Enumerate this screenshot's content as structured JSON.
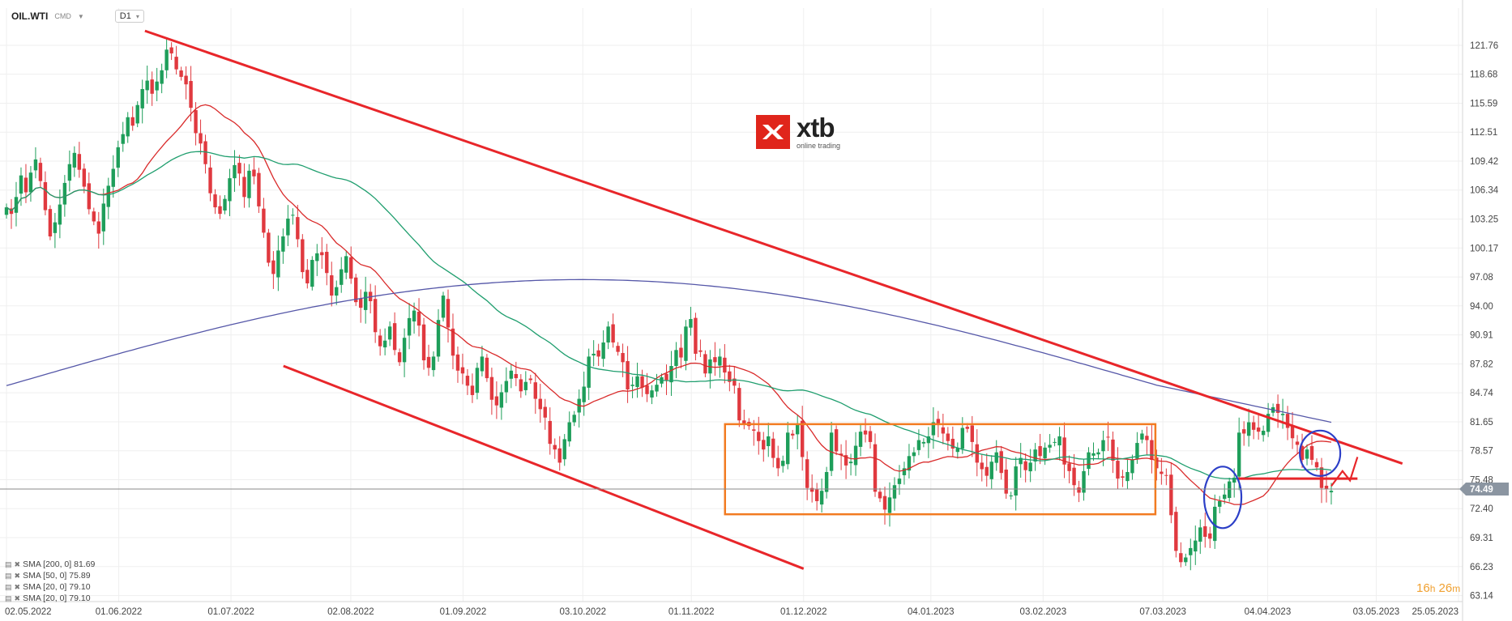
{
  "header": {
    "symbol": "OIL.WTI",
    "symbol_type": "CMD",
    "timeframe": "D1"
  },
  "logo": {
    "name": "xtb",
    "tagline": "online trading"
  },
  "current_price": "74.49",
  "timer": {
    "hours": "16",
    "h_unit": "h",
    "minutes": "26",
    "m_unit": "m"
  },
  "indicators": [
    {
      "label": "SMA [200, 0] 81.69",
      "color": "#5557a8"
    },
    {
      "label": "SMA [50, 0] 75.89",
      "color": "#1f9e6e"
    },
    {
      "label": "SMA [20, 0] 79.10",
      "color": "#d92a2a"
    },
    {
      "label": "SMA [20, 0] 79.10",
      "color": "#d92a2a"
    }
  ],
  "colors": {
    "bull": "#1e9e5a",
    "bear": "#e0393f",
    "trend_lines": "#e8262a",
    "box": "#f27b21",
    "circles": "#2c3fc7",
    "price_line": "#8a8a8a",
    "price_tag": "#8b95a1"
  },
  "chart_data": {
    "type": "candlestick",
    "y_ticks": [
      "121.76",
      "118.68",
      "115.59",
      "112.51",
      "109.42",
      "106.34",
      "103.25",
      "100.17",
      "97.08",
      "94.00",
      "90.91",
      "87.82",
      "84.74",
      "81.65",
      "78.57",
      "75.48",
      "72.40",
      "69.31",
      "66.23",
      "63.14"
    ],
    "x_ticks": [
      "02.05.2022",
      "01.06.2022",
      "01.07.2022",
      "02.08.2022",
      "01.09.2022",
      "03.10.2022",
      "01.11.2022",
      "01.12.2022",
      "04.01.2023",
      "03.02.2023",
      "07.03.2023",
      "04.04.2023",
      "03.05.2023",
      "25.05.2023"
    ],
    "ylim": [
      62.5,
      124.0
    ],
    "x_range": [
      "2022-05-02",
      "2023-05-25"
    ],
    "grid": true,
    "price_close": [
      104.5,
      103.8,
      105.6,
      107.9,
      106.1,
      108.2,
      109.6,
      107.3,
      104.2,
      101.4,
      102.9,
      104.8,
      107.1,
      109.1,
      110.3,
      108.5,
      106.7,
      104.3,
      103.0,
      101.7,
      104.9,
      106.8,
      108.6,
      110.9,
      112.3,
      114.1,
      113.2,
      115.4,
      117.1,
      118.0,
      116.6,
      117.9,
      119.1,
      121.3,
      120.9,
      119.2,
      118.4,
      117.6,
      115.1,
      112.4,
      111.3,
      109.1,
      106.0,
      104.5,
      103.8,
      105.4,
      107.6,
      109.0,
      108.1,
      105.6,
      108.4,
      107.8,
      104.6,
      101.8,
      98.6,
      97.4,
      99.9,
      101.4,
      103.3,
      103.7,
      101.1,
      97.6,
      96.4,
      98.9,
      99.6,
      99.4,
      97.5,
      95.1,
      96.0,
      97.9,
      99.3,
      96.9,
      94.4,
      93.8,
      95.5,
      94.5,
      91.2,
      89.7,
      90.3,
      91.8,
      89.3,
      88.0,
      90.6,
      92.7,
      93.5,
      91.9,
      88.2,
      87.4,
      88.6,
      92.5,
      95.1,
      91.7,
      88.7,
      87.1,
      86.8,
      85.5,
      84.5,
      87.4,
      88.6,
      86.3,
      84.0,
      83.4,
      84.8,
      86.0,
      87.1,
      86.3,
      84.9,
      85.9,
      86.1,
      84.1,
      83.0,
      82.1,
      79.3,
      78.7,
      77.3,
      79.8,
      81.6,
      82.4,
      84.1,
      85.4,
      88.6,
      88.9,
      88.6,
      90.1,
      91.8,
      90.1,
      89.1,
      88.0,
      85.1,
      85.6,
      86.5,
      85.3,
      84.6,
      85.0,
      85.6,
      86.4,
      86.1,
      87.6,
      89.3,
      88.5,
      91.8,
      92.6,
      88.9,
      89.1,
      86.8,
      88.3,
      88.0,
      88.6,
      86.9,
      85.9,
      85.5,
      81.8,
      81.4,
      81.2,
      80.7,
      79.6,
      78.7,
      80.1,
      77.8,
      76.7,
      77.5,
      80.5,
      80.2,
      81.4,
      77.9,
      74.6,
      74.2,
      73.2,
      74.3,
      76.3,
      80.5,
      78.5,
      78.1,
      77.0,
      77.4,
      79.1,
      80.6,
      80.3,
      79.5,
      74.2,
      73.5,
      72.3,
      73.6,
      74.9,
      75.6,
      76.7,
      78.0,
      78.4,
      79.7,
      79.5,
      80.1,
      81.6,
      81.3,
      80.4,
      79.6,
      78.8,
      78.9,
      81.0,
      80.9,
      79.5,
      77.3,
      76.6,
      75.9,
      77.4,
      78.4,
      76.2,
      74.0,
      73.8,
      76.9,
      77.8,
      76.5,
      77.3,
      78.7,
      78.0,
      78.9,
      79.2,
      79.5,
      80.1,
      77.1,
      76.4,
      74.9,
      74.1,
      76.4,
      78.4,
      78.3,
      78.4,
      79.7,
      80.0,
      77.5,
      75.6,
      75.7,
      76.3,
      77.6,
      79.4,
      80.4,
      79.7,
      77.6,
      76.7,
      76.1,
      75.9,
      71.7,
      67.9,
      66.7,
      67.2,
      68.2,
      69.0,
      70.4,
      69.4,
      69.2,
      72.6,
      73.2,
      73.9,
      75.3,
      75.7,
      80.5,
      80.4,
      81.6,
      80.8,
      80.6,
      80.7,
      82.5,
      83.2,
      82.6,
      82.5,
      81.0,
      79.9,
      79.2,
      77.6,
      78.7,
      77.6,
      76.8,
      74.6,
      74.5,
      74.3
    ]
  }
}
